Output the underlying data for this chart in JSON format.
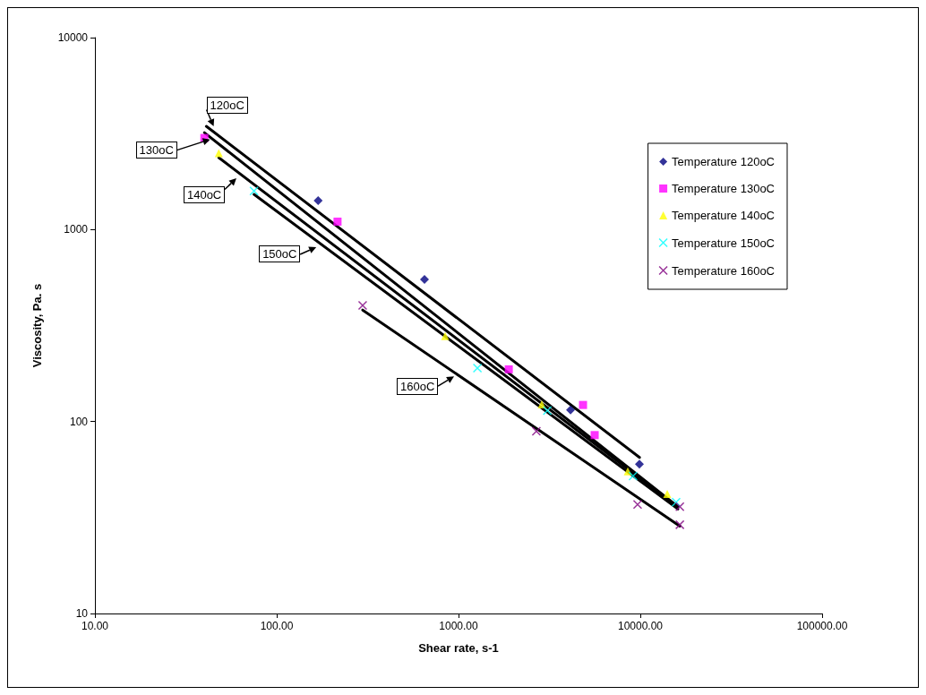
{
  "chart_data": {
    "type": "scatter",
    "xlabel": "Shear rate, s-1",
    "ylabel": "Viscosity, Pa. s",
    "log": "xy",
    "xlim": [
      10,
      100000
    ],
    "ylim": [
      10,
      10000
    ],
    "xticks": [
      {
        "value": 10,
        "label": "10.00"
      },
      {
        "value": 100,
        "label": "100.00"
      },
      {
        "value": 1000,
        "label": "1000.00"
      },
      {
        "value": 10000,
        "label": "10000.00"
      },
      {
        "value": 100000,
        "label": "100000.00"
      }
    ],
    "yticks": [
      10,
      100,
      1000,
      10000
    ],
    "grid": false,
    "legend": "top right",
    "series": [
      {
        "name": "Temperature 120oC",
        "color": "#000080",
        "marker": "diamond",
        "x": [
          169,
          650,
          4130,
          9890
        ],
        "values": [
          1415,
          550,
          115,
          60
        ]
      },
      {
        "name": "Temperature 130oC",
        "color": "#ff00ff",
        "marker": "square",
        "x": [
          40,
          216,
          1890,
          4840,
          5610
        ],
        "values": [
          3000,
          1100,
          187,
          122,
          85
        ]
      },
      {
        "name": "Temperature 140oC",
        "color": "#ffff00",
        "marker": "triangle",
        "x": [
          48,
          844,
          2870,
          8530,
          14060
        ],
        "values": [
          2500,
          279,
          123,
          55,
          42
        ]
      },
      {
        "name": "Temperature 150oC",
        "color": "#00ffff",
        "marker": "cross",
        "x": [
          75,
          1270,
          3080,
          9120,
          15740
        ],
        "values": [
          1590,
          190,
          114,
          52,
          38
        ]
      },
      {
        "name": "Temperature 160oC",
        "color": "#800080",
        "marker": "cross",
        "x": [
          297,
          2680,
          9660,
          16500,
          16500
        ],
        "values": [
          403,
          89,
          37,
          36,
          29
        ]
      },
      {
        "type": "line",
        "color": "#000000",
        "marker": "none",
        "x": [
          41,
          9900
        ],
        "values": [
          3450,
          65
        ]
      },
      {
        "type": "line",
        "color": "#000000",
        "marker": "none",
        "x": [
          40,
          16100
        ],
        "values": [
          3200,
          36
        ]
      },
      {
        "type": "line",
        "color": "#000000",
        "marker": "none",
        "x": [
          48,
          16000
        ],
        "values": [
          2370,
          36
        ]
      },
      {
        "type": "line",
        "color": "#000000",
        "marker": "none",
        "x": [
          75,
          16100
        ],
        "values": [
          1525,
          35
        ]
      },
      {
        "type": "line",
        "color": "#000000",
        "marker": "none",
        "x": [
          297,
          16500
        ],
        "values": [
          381,
          28.5
        ]
      }
    ],
    "annotations": [
      {
        "text": "120oC",
        "x": 45,
        "y": 3450
      },
      {
        "text": "130oC",
        "x": 43,
        "y": 2950
      },
      {
        "text": "140oC",
        "x": 60,
        "y": 1850
      },
      {
        "text": "150oC",
        "x": 165,
        "y": 810
      },
      {
        "text": "160oC",
        "x": 945,
        "y": 172
      }
    ]
  }
}
